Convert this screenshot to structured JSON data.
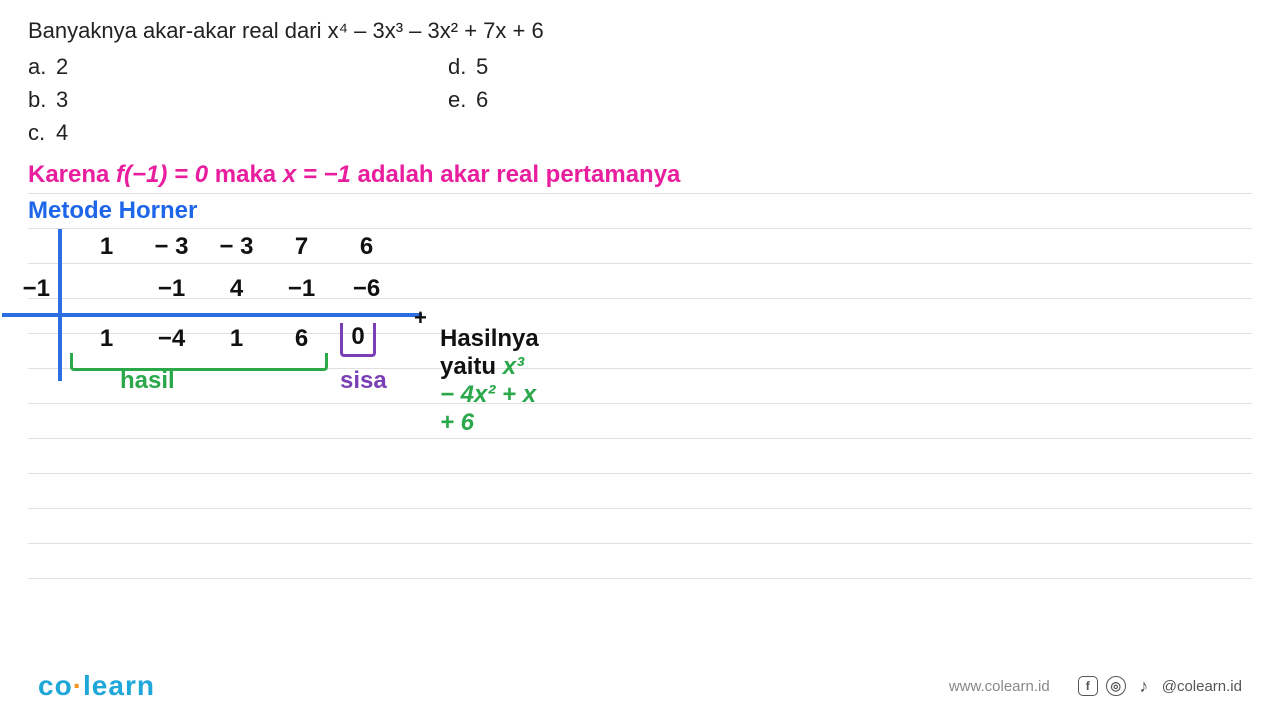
{
  "question": {
    "stem_pre": "Banyaknya akar-akar real dari ",
    "poly": "x⁴ – 3x³ – 3x² + 7x + 6",
    "options": {
      "a": "2",
      "b": "3",
      "c": "4",
      "d": "5",
      "e": "6"
    }
  },
  "solution": {
    "karena_1": "Karena ",
    "karena_f": "f(−1) = 0",
    "karena_2": " maka ",
    "karena_x": "x = −1",
    "karena_3": " adalah akar real pertamanya",
    "metode": "Metode Horner",
    "divisor": "−1",
    "row1": [
      "1",
      "− 3",
      "− 3",
      "7",
      "6"
    ],
    "row2": [
      "",
      "−1",
      "4",
      "−1",
      "−6"
    ],
    "row3": [
      "1",
      "−4",
      "1",
      "6",
      ""
    ],
    "sisa_value": "0",
    "plus": "+",
    "hasil_label": "hasil",
    "sisa_label": "sisa",
    "hasilnya_pre": "Hasilnya yaitu ",
    "hasilnya_poly": "x³ − 4x² + x + 6"
  },
  "footer": {
    "logo_a": "co",
    "logo_b": "learn",
    "url": "www.colearn.id",
    "handle": "@colearn.id"
  },
  "colors": {
    "pink": "#e91e9e",
    "blue": "#1e66e9",
    "line_blue": "#2b6fe3",
    "green": "#2aa84a",
    "purple": "#7b3fb5",
    "rule": "#e0e0e0",
    "logo_blue": "#1ea7d8",
    "logo_orange": "#f7931e"
  }
}
